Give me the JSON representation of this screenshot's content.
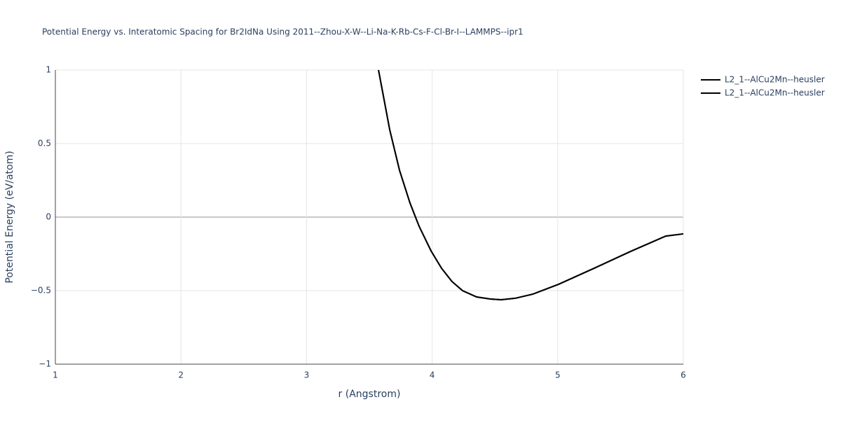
{
  "chart_data": {
    "type": "line",
    "title": "Potential Energy vs. Interatomic Spacing for Br2IdNa Using 2011--Zhou-X-W--Li-Na-K-Rb-Cs-F-Cl-Br-I--LAMMPS--ipr1",
    "x_label": "r (Angstrom)",
    "y_label": "Potential Energy (eV/atom)",
    "x": [
      3.573,
      3.662,
      3.74,
      3.824,
      3.896,
      3.991,
      4.075,
      4.158,
      4.242,
      4.354,
      4.465,
      4.549,
      4.661,
      4.8,
      5.007,
      5.302,
      5.581,
      5.86,
      6.0
    ],
    "series": [
      {
        "name": "L2_1--AlCu2Mn--heusler",
        "color": "#000000",
        "values": [
          1.0,
          0.595,
          0.319,
          0.095,
          -0.062,
          -0.229,
          -0.348,
          -0.438,
          -0.5,
          -0.543,
          -0.557,
          -0.562,
          -0.552,
          -0.524,
          -0.457,
          -0.343,
          -0.233,
          -0.129,
          -0.114
        ]
      },
      {
        "name": "L2_1--AlCu2Mn--heusler",
        "color": "#000000",
        "values": [
          1.0,
          0.595,
          0.319,
          0.095,
          -0.062,
          -0.229,
          -0.348,
          -0.438,
          -0.5,
          -0.543,
          -0.557,
          -0.562,
          -0.552,
          -0.524,
          -0.457,
          -0.343,
          -0.233,
          -0.129,
          -0.114
        ]
      }
    ],
    "xlim": [
      1,
      6
    ],
    "xticks": [
      1,
      2,
      3,
      4,
      5,
      6
    ],
    "ylim": [
      -1,
      1
    ],
    "yticks": [
      {
        "value": -1,
        "label": "−1"
      },
      {
        "value": -0.5,
        "label": "−0.5"
      },
      0,
      0.5,
      1
    ],
    "grid": true,
    "legend": "top-right"
  }
}
